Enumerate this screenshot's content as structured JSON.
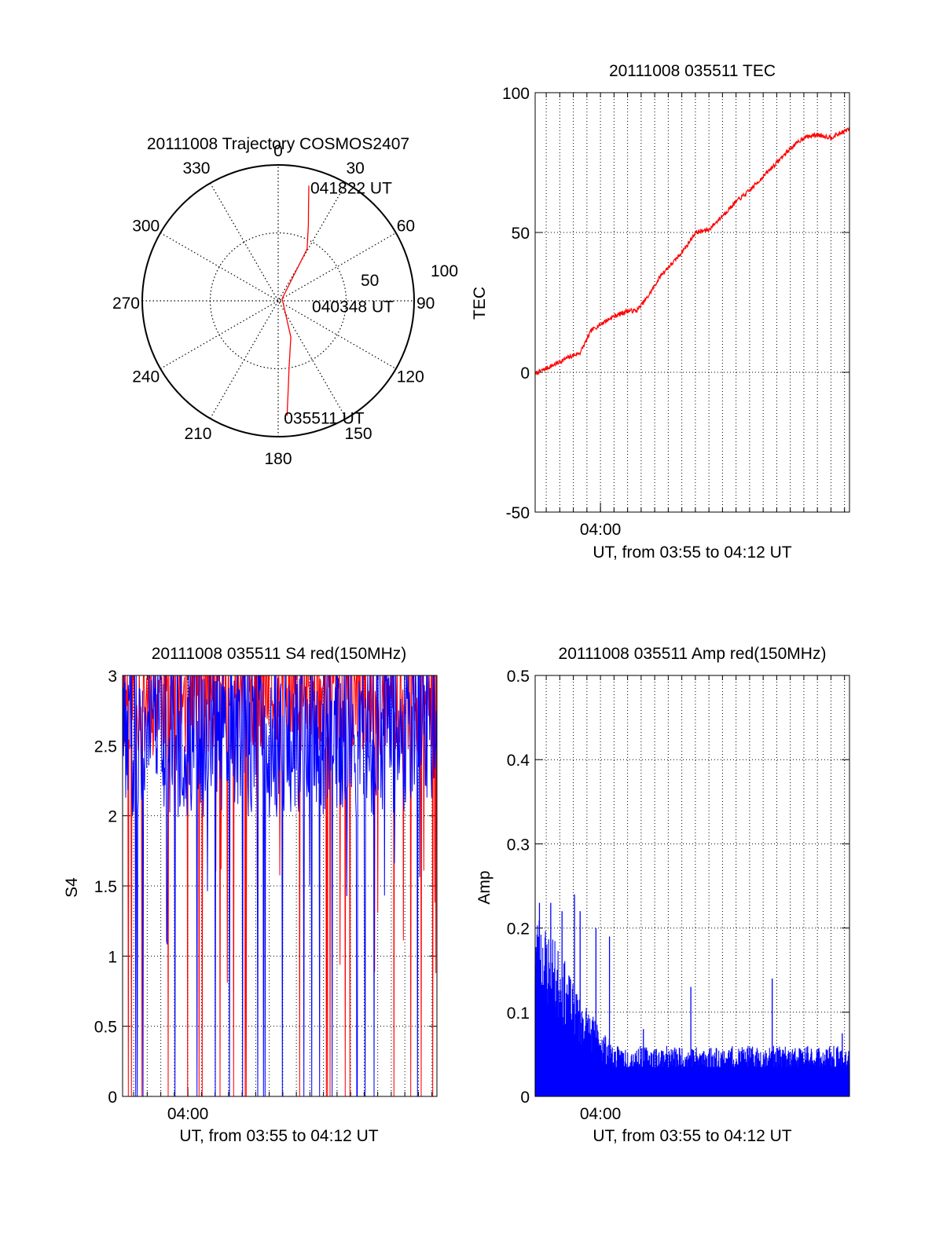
{
  "chart_data": [
    {
      "type": "polar",
      "title": "20111008 Trajectory COSMOS2407",
      "angle_labels": [
        {
          "deg": 0,
          "text": "0"
        },
        {
          "deg": 30,
          "text": "30"
        },
        {
          "deg": 60,
          "text": "60"
        },
        {
          "deg": 90,
          "text": "90"
        },
        {
          "deg": 120,
          "text": "120"
        },
        {
          "deg": 150,
          "text": "150"
        },
        {
          "deg": 180,
          "text": "180"
        },
        {
          "deg": 210,
          "text": "210"
        },
        {
          "deg": 240,
          "text": "240"
        },
        {
          "deg": 270,
          "text": "270"
        },
        {
          "deg": 300,
          "text": "300"
        },
        {
          "deg": 330,
          "text": "330"
        }
      ],
      "radial_labels": [
        {
          "r": 50,
          "text": "50"
        },
        {
          "r": 100,
          "text": "100"
        }
      ],
      "rmax": 100,
      "trajectory": {
        "color": "#ff0000",
        "points": [
          [
            14.9,
            87.7
          ],
          [
            17.9,
            72.6
          ],
          [
            21.7,
            60.0
          ],
          [
            29.1,
            43.7
          ],
          [
            62.0,
            3.3
          ],
          [
            160.8,
            28.3
          ],
          [
            170.6,
            49.3
          ],
          [
            173.5,
            65.2
          ],
          [
            175.6,
            84.8
          ]
        ]
      },
      "annotations": [
        {
          "text": "041822 UT",
          "deg": 14.9,
          "r": 87.7
        },
        {
          "text": "040348 UT",
          "deg": 62.0,
          "r": 3.3
        },
        {
          "text": "035511 UT",
          "deg": 175.6,
          "r": 84.8
        }
      ]
    },
    {
      "type": "line",
      "title": "20111008 035511 TEC",
      "xlabel": "UT, from 03:55 to 04:12 UT",
      "ylabel": "TEC",
      "xlim": [
        "03:55:11",
        "04:18:22"
      ],
      "ylim": [
        -50,
        100
      ],
      "x_ticks": [
        {
          "t": "04:00:00",
          "label": "04:00"
        }
      ],
      "y_ticks": [
        -50,
        0,
        50,
        100
      ],
      "grid": true,
      "series": [
        {
          "color": "#ff0000",
          "x": [
            "03:55:11",
            "03:56:30",
            "03:57:30",
            "03:58:30",
            "03:59:20",
            "04:00:15",
            "04:01:00",
            "04:02:00",
            "04:02:40",
            "04:03:30",
            "04:04:30",
            "04:05:30",
            "04:06:20",
            "04:07:00",
            "04:08:00",
            "04:09:00",
            "04:10:00",
            "04:11:00",
            "04:12:00",
            "04:13:00",
            "04:14:00",
            "04:15:00",
            "04:16:00",
            "04:17:00",
            "04:18:22"
          ],
          "y": [
            -0.5,
            2.5,
            5,
            7,
            15,
            18,
            20,
            22,
            22,
            27,
            35,
            40,
            45,
            50,
            51,
            56,
            61,
            65,
            70,
            75,
            80,
            84,
            85,
            84,
            87
          ]
        }
      ]
    },
    {
      "type": "line",
      "title": "20111008 035511 S4 red(150MHz)",
      "xlabel": "UT, from 03:55 to 04:12 UT",
      "ylabel": "S4",
      "xlim": [
        "03:55:11",
        "04:18:22"
      ],
      "ylim": [
        0,
        3
      ],
      "x_ticks": [
        {
          "t": "04:00:00",
          "label": "04:00"
        }
      ],
      "y_ticks": [
        0,
        0.5,
        1,
        1.5,
        2,
        2.5,
        3
      ],
      "y_tick_labels": [
        "0",
        "0.5",
        "1",
        "1.5",
        "2",
        "2.5",
        "3"
      ],
      "grid": true,
      "series": [
        {
          "color": "#ff0000",
          "base": 2.7,
          "spread": 0.45,
          "dips_to_zero": 22,
          "dip_prob": 0.06,
          "points": 600
        },
        {
          "color": "#0000ff",
          "base": 2.35,
          "spread": 0.6,
          "dips_to_zero": 6,
          "dip_prob": 0.04,
          "points": 600
        }
      ]
    },
    {
      "type": "bar",
      "title": "20111008 035511 Amp red(150MHz)",
      "xlabel": "UT, from 03:55 to 04:12 UT",
      "ylabel": "Amp",
      "xlim": [
        "03:55:11",
        "04:18:22"
      ],
      "ylim": [
        0,
        0.5
      ],
      "x_ticks": [
        {
          "t": "04:00:00",
          "label": "04:00"
        }
      ],
      "y_ticks": [
        0,
        0.1,
        0.2,
        0.3,
        0.4,
        0.5
      ],
      "y_tick_labels": [
        "0",
        "0.1",
        "0.2",
        "0.3",
        "0.4",
        "0.5"
      ],
      "grid": true,
      "series": [
        {
          "color": "#0000ff",
          "envelope_x": [
            "03:55:11",
            "03:56:30",
            "03:57:30",
            "03:58:00",
            "03:59:00",
            "04:00:00",
            "04:01:00",
            "04:03:00",
            "04:06:00",
            "04:10:00",
            "04:14:00",
            "04:18:22"
          ],
          "envelope_y": [
            0.19,
            0.16,
            0.13,
            0.11,
            0.09,
            0.07,
            0.05,
            0.05,
            0.05,
            0.05,
            0.05,
            0.05
          ],
          "spikes": [
            {
              "t": "03:55:30",
              "v": 0.23
            },
            {
              "t": "03:56:20",
              "v": 0.23
            },
            {
              "t": "03:57:10",
              "v": 0.22
            },
            {
              "t": "03:58:05",
              "v": 0.24
            },
            {
              "t": "03:58:30",
              "v": 0.22
            },
            {
              "t": "03:59:40",
              "v": 0.2
            },
            {
              "t": "04:00:40",
              "v": 0.19
            },
            {
              "t": "04:03:10",
              "v": 0.08
            },
            {
              "t": "04:06:40",
              "v": 0.13
            },
            {
              "t": "04:12:40",
              "v": 0.14
            },
            {
              "t": "04:17:50",
              "v": 0.075
            }
          ],
          "points": 700
        }
      ]
    }
  ]
}
